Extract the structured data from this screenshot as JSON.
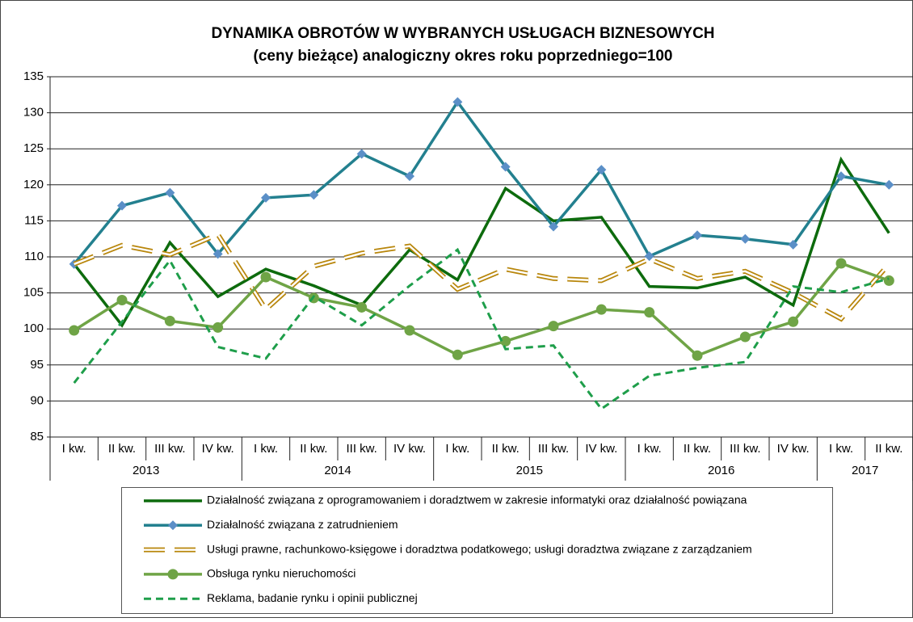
{
  "chart_data": {
    "type": "line",
    "title": "DYNAMIKA OBROTÓW W WYBRANYCH USŁUGACH BIZNESOWYCH",
    "subtitle": "(ceny bieżące) analogiczny okres roku poprzedniego=100",
    "categories": [
      "I kw.",
      "II kw.",
      "III kw.",
      "IV kw.",
      "I kw.",
      "II kw.",
      "III kw.",
      "IV kw.",
      "I kw.",
      "II kw.",
      "III kw.",
      "IV kw.",
      "I kw.",
      "II kw.",
      "III kw.",
      "IV kw.",
      "I kw.",
      "II kw."
    ],
    "category_years": [
      "2013",
      "2013",
      "2013",
      "2013",
      "2014",
      "2014",
      "2014",
      "2014",
      "2015",
      "2015",
      "2015",
      "2015",
      "2016",
      "2016",
      "2016",
      "2016",
      "2017",
      "2017"
    ],
    "ylim": [
      85,
      135
    ],
    "yticks": [
      85,
      90,
      95,
      100,
      105,
      110,
      115,
      120,
      125,
      130,
      135
    ],
    "grid": true,
    "series": [
      {
        "name": "Działalność związana z oprogramowaniem i doradztwem w zakresie informatyki oraz działalność powiązana",
        "color": "#0d6b0d",
        "style": "solid",
        "marker": null,
        "values": [
          109,
          100.5,
          112,
          104.5,
          108.3,
          106,
          103.3,
          111,
          106.8,
          119.5,
          115,
          115.5,
          105.9,
          105.7,
          107.2,
          103.3,
          123.5,
          113.3
        ]
      },
      {
        "name": "Działalność związana z zatrudnieniem",
        "color": "#23808f",
        "marker_color": "#5b8fc7",
        "style": "solid",
        "marker": "diamond",
        "values": [
          109,
          117.1,
          118.9,
          110.4,
          118.2,
          118.6,
          124.3,
          121.2,
          131.5,
          122.5,
          114.2,
          122.1,
          110.1,
          113,
          112.5,
          111.7,
          121.2,
          120
        ]
      },
      {
        "name": "Usługi prawne, rachunkowo-księgowe i doradztwa podatkowego; usługi doradztwa związane z zarządzaniem",
        "color": "#b8860b",
        "style": "double-dash",
        "marker": null,
        "values": [
          109,
          111.6,
          110.3,
          113.1,
          102.7,
          108.7,
          110.5,
          111.5,
          105.5,
          108.3,
          107,
          106.7,
          109.7,
          107,
          108,
          105,
          101.4,
          109
        ]
      },
      {
        "name": "Obsługa rynku nieruchomości",
        "color": "#6fa446",
        "style": "solid",
        "marker": "circle",
        "values": [
          99.8,
          104,
          101.1,
          100.2,
          107.2,
          104.3,
          103,
          99.8,
          96.4,
          98.3,
          100.4,
          102.7,
          102.3,
          96.3,
          98.9,
          101,
          109.1,
          106.7
        ]
      },
      {
        "name": "Reklama, badanie rynku i opinii publicznej",
        "color": "#1e9e4a",
        "style": "dashed",
        "marker": null,
        "values": [
          92.5,
          101,
          109.5,
          97.5,
          95.9,
          104.5,
          100.5,
          106,
          111,
          97.2,
          97.7,
          88.9,
          93.5,
          94.6,
          95.4,
          105.9,
          105.1,
          107
        ]
      }
    ]
  }
}
